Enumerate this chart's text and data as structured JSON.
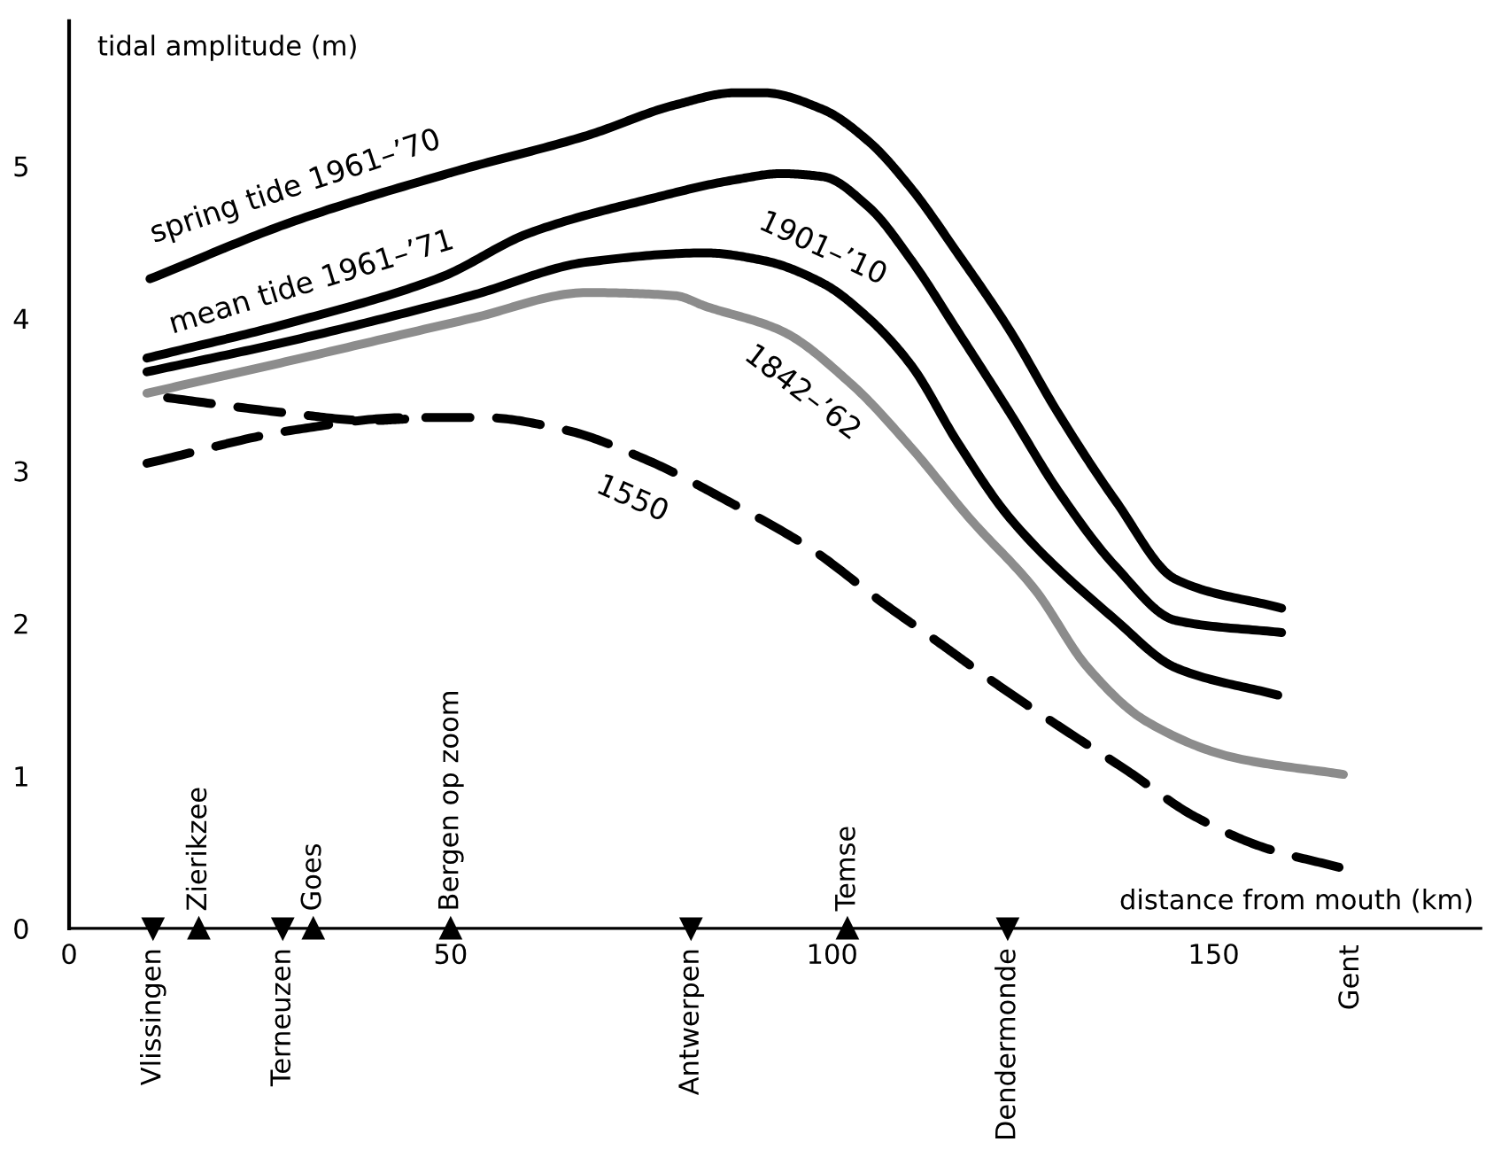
{
  "chart_data": {
    "type": "line",
    "xlabel": "distance from mouth (km)",
    "ylabel": "tidal amplitude (m)",
    "xlim": [
      0,
      185
    ],
    "ylim": [
      0,
      5.95
    ],
    "xticks": [
      0,
      50,
      100,
      150
    ],
    "yticks": [
      0,
      1,
      2,
      3,
      4,
      5
    ],
    "annotations": [
      {
        "text": "Vlissingen",
        "x": 11,
        "y": 0
      },
      {
        "text": "Terneuzen",
        "x": 28,
        "y": 0
      },
      {
        "text": "Antwerpen",
        "x": 81.5,
        "y": 0
      },
      {
        "text": "Dendermonde",
        "x": 123,
        "y": 0
      },
      "Gent",
      {
        "text": "Zierikzee",
        "x": 17,
        "y": 0
      },
      {
        "text": "Goes",
        "x": 32,
        "y": 0
      },
      {
        "text": "Bergen op zoom",
        "x": 50,
        "y": 0
      },
      {
        "text": "Temse",
        "x": 102,
        "y": 0
      }
    ],
    "grid": false,
    "legend": false,
    "marker": "none",
    "series": [
      {
        "name": "spring tide 1961–’70",
        "color": "#000000",
        "line_style": "solid",
        "x": [
          10.6,
          29.6,
          51,
          67.9,
          79.4,
          87.3,
          91,
          98.8,
          104.8,
          110.4,
          116.4,
          123.3,
          129.6,
          137.2,
          145,
          158.9
        ],
        "values": [
          4.26,
          4.64,
          4.97,
          5.2,
          5.4,
          5.48,
          5.48,
          5.37,
          5.16,
          4.85,
          4.43,
          3.92,
          3.38,
          2.8,
          2.29,
          2.1
        ]
      },
      {
        "name": "mean tide 1961–’71",
        "color": "#000000",
        "line_style": "solid",
        "x": [
          10.2,
          29.6,
          48.7,
          60.3,
          75.8,
          87.3,
          93.3,
          98.8,
          104.8,
          110.4,
          116.4,
          123.3,
          129.6,
          137.2,
          145,
          158.9
        ],
        "values": [
          3.74,
          3.98,
          4.27,
          4.56,
          4.78,
          4.91,
          4.95,
          4.93,
          4.73,
          4.38,
          3.92,
          3.38,
          2.87,
          2.37,
          2.02,
          1.94
        ]
      },
      {
        "name": "1901–’10",
        "color": "#000000",
        "line_style": "solid",
        "x": [
          10.2,
          29.6,
          52.7,
          67.9,
          83.4,
          91,
          98.8,
          104.8,
          110.4,
          116.4,
          123.3,
          137.2,
          145,
          158.4
        ],
        "values": [
          3.65,
          3.86,
          4.15,
          4.37,
          4.43,
          4.38,
          4.23,
          4.0,
          3.69,
          3.19,
          2.69,
          2.02,
          1.71,
          1.53
        ]
      },
      {
        "name": "1842–’62",
        "color": "#8c8c8c",
        "line_style": "solid",
        "x": [
          10.2,
          29.6,
          52.7,
          67.9,
          79.4,
          83.4,
          93.3,
          102.5,
          110.4,
          118,
          126.6,
          133.5,
          141.1,
          152.7,
          167
        ],
        "values": [
          3.51,
          3.73,
          4.0,
          4.17,
          4.15,
          4.08,
          3.92,
          3.57,
          3.15,
          2.69,
          2.22,
          1.71,
          1.36,
          1.12,
          1.01
        ]
      },
      {
        "name": "1550",
        "color": "#000000",
        "line_style": "dashed",
        "x": [
          10.2,
          29.6,
          44.1,
          54.5,
          64.9,
          75.8,
          86.4,
          97.2,
          106.5,
          114.1,
          121.9,
          129.6,
          138.8,
          147.3,
          156.6,
          166.5
        ],
        "values": [
          3.05,
          3.27,
          3.35,
          3.35,
          3.27,
          3.07,
          2.8,
          2.49,
          2.14,
          1.87,
          1.59,
          1.33,
          1.03,
          0.74,
          0.53,
          0.4
        ]
      },
      {
        "color": "#000000",
        "line_style": "dashed",
        "x": [
          12.9,
          28.6,
          39.5,
          44
        ],
        "values": [
          3.48,
          3.38,
          3.33,
          3.34
        ]
      }
    ]
  }
}
